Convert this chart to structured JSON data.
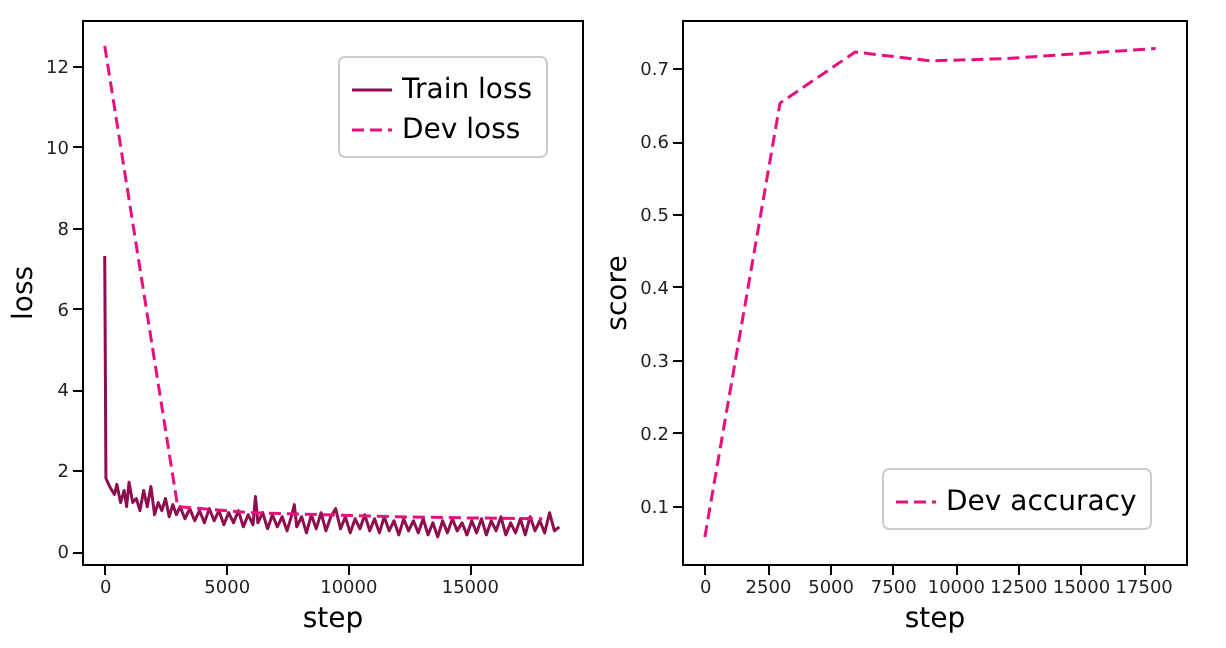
{
  "chart_data": [
    {
      "type": "line",
      "xlabel": "step",
      "ylabel": "loss",
      "xlim": [
        -935,
        19635
      ],
      "ylim": [
        -0.32,
        13.14
      ],
      "xticks": [
        0,
        5000,
        10000,
        15000
      ],
      "yticks": [
        0,
        2,
        4,
        6,
        8,
        10,
        12
      ],
      "grid": false,
      "legend": "top right",
      "series": [
        {
          "name": "Train loss",
          "color": "#8e0e4f",
          "line_style": "solid",
          "x": [
            0,
            50,
            200,
            400,
            500,
            650,
            800,
            900,
            1000,
            1150,
            1300,
            1450,
            1600,
            1750,
            1900,
            2050,
            2200,
            2350,
            2500,
            2650,
            2800,
            2950,
            3100,
            3300,
            3500,
            3700,
            3900,
            4100,
            4300,
            4500,
            4700,
            4900,
            5100,
            5300,
            5500,
            5700,
            5900,
            6100,
            6200,
            6300,
            6500,
            6700,
            6900,
            7100,
            7300,
            7500,
            7700,
            7800,
            7900,
            8100,
            8300,
            8500,
            8700,
            8900,
            9100,
            9300,
            9500,
            9700,
            9900,
            10100,
            10300,
            10500,
            10700,
            10900,
            11100,
            11300,
            11500,
            11700,
            11900,
            12100,
            12300,
            12500,
            12700,
            12900,
            13100,
            13300,
            13500,
            13700,
            13900,
            14100,
            14300,
            14500,
            14700,
            14900,
            15100,
            15300,
            15500,
            15700,
            15900,
            16100,
            16300,
            16500,
            16700,
            16900,
            17100,
            17300,
            17500,
            17700,
            17900,
            18100,
            18300,
            18500,
            18700
          ],
          "values": [
            7.3,
            1.8,
            1.6,
            1.4,
            1.65,
            1.2,
            1.5,
            1.1,
            1.7,
            1.2,
            1.3,
            1.0,
            1.5,
            1.1,
            1.6,
            0.9,
            1.2,
            1.0,
            1.3,
            0.85,
            1.15,
            0.9,
            1.1,
            0.8,
            1.05,
            0.75,
            1.0,
            0.7,
            1.05,
            0.75,
            1.0,
            0.65,
            0.95,
            0.7,
            1.0,
            0.6,
            0.9,
            0.65,
            1.35,
            0.7,
            0.95,
            0.55,
            0.9,
            0.6,
            0.85,
            0.5,
            0.9,
            1.15,
            0.6,
            0.85,
            0.45,
            0.9,
            0.55,
            0.95,
            0.5,
            0.85,
            1.05,
            0.55,
            0.85,
            0.45,
            0.8,
            0.55,
            0.9,
            0.5,
            0.8,
            0.45,
            0.85,
            0.5,
            0.75,
            0.4,
            0.8,
            0.5,
            0.75,
            0.45,
            0.8,
            0.4,
            0.7,
            0.35,
            0.75,
            0.45,
            0.8,
            0.5,
            0.7,
            0.4,
            0.75,
            0.45,
            0.8,
            0.4,
            0.75,
            0.5,
            0.85,
            0.4,
            0.7,
            0.45,
            0.8,
            0.4,
            0.85,
            0.5,
            0.75,
            0.45,
            0.95,
            0.5,
            0.6
          ]
        },
        {
          "name": "Dev loss",
          "color": "#e8107e",
          "line_style": "dashed",
          "x": [
            0,
            3000,
            6000,
            9000,
            12000,
            15000,
            18000
          ],
          "values": [
            12.5,
            1.1,
            0.95,
            0.9,
            0.85,
            0.82,
            0.8
          ]
        }
      ]
    },
    {
      "type": "line",
      "xlabel": "step",
      "ylabel": "score",
      "xlim": [
        -912,
        19210
      ],
      "ylim": [
        0.02,
        0.766
      ],
      "xticks": [
        0,
        2500,
        5000,
        7500,
        10000,
        12500,
        15000,
        17500
      ],
      "yticks": [
        0.1,
        0.2,
        0.3,
        0.4,
        0.5,
        0.6,
        0.7
      ],
      "grid": false,
      "legend": "bottom right",
      "series": [
        {
          "name": "Dev accuracy",
          "color": "#e8107e",
          "line_style": "dashed",
          "x": [
            0,
            3000,
            6000,
            9000,
            12000,
            15000,
            18000
          ],
          "values": [
            0.057,
            0.652,
            0.722,
            0.71,
            0.713,
            0.72,
            0.727
          ]
        }
      ]
    }
  ]
}
